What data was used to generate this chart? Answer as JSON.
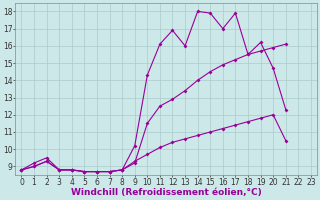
{
  "xlabel": "Windchill (Refroidissement éolien,°C)",
  "bg_color": "#cce8e8",
  "line_color": "#990099",
  "grid_color": "#aacccc",
  "xlim": [
    -0.5,
    23.5
  ],
  "ylim": [
    8.5,
    18.5
  ],
  "xticks": [
    0,
    1,
    2,
    3,
    4,
    5,
    6,
    7,
    8,
    9,
    10,
    11,
    12,
    13,
    14,
    15,
    16,
    17,
    18,
    19,
    20,
    21,
    22,
    23
  ],
  "yticks": [
    9,
    10,
    11,
    12,
    13,
    14,
    15,
    16,
    17,
    18
  ],
  "line1_y": [
    8.8,
    9.2,
    9.5,
    8.8,
    8.8,
    8.7,
    8.7,
    8.7,
    8.8,
    10.2,
    14.3,
    16.1,
    16.9,
    16.0,
    18.0,
    17.9,
    17.0,
    17.9,
    15.5,
    16.2,
    14.7,
    12.3
  ],
  "line2_y": [
    8.8,
    9.0,
    9.3,
    8.8,
    8.8,
    8.7,
    8.7,
    8.7,
    8.8,
    9.2,
    11.5,
    12.5,
    12.9,
    13.4,
    14.0,
    14.5,
    14.9,
    15.2,
    15.5,
    15.7,
    15.9,
    16.1
  ],
  "line3_y": [
    8.8,
    9.0,
    9.3,
    8.8,
    8.8,
    8.7,
    8.7,
    8.7,
    8.8,
    9.3,
    9.7,
    10.1,
    10.4,
    10.6,
    10.8,
    11.0,
    11.2,
    11.4,
    11.6,
    11.8,
    12.0,
    10.5
  ],
  "marker_size": 2.0,
  "linewidth": 0.8,
  "tick_fontsize": 5.5,
  "xlabel_fontsize": 6.5
}
